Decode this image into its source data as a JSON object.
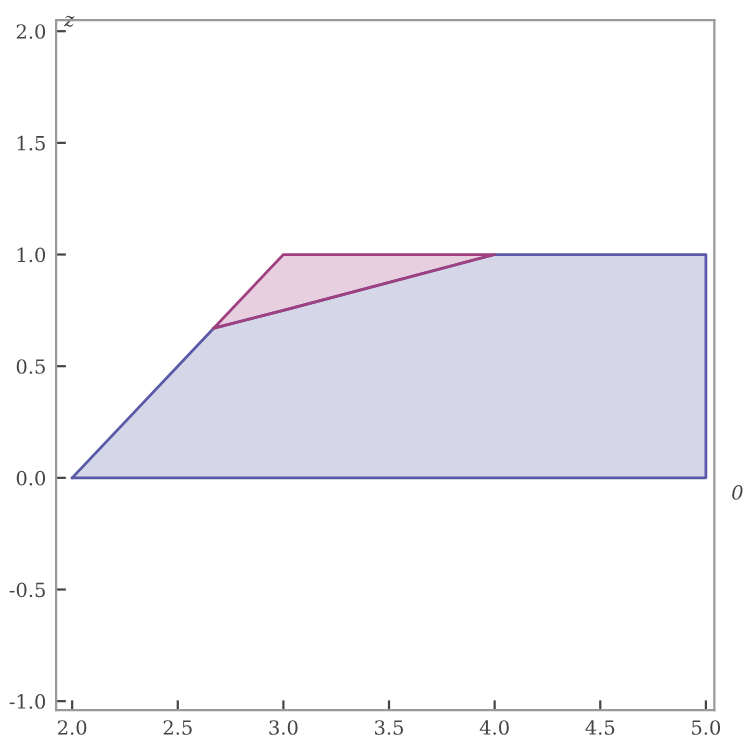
{
  "chart_data": {
    "type": "area",
    "xlabel": "0",
    "ylabel": "z",
    "series": [
      {
        "color": "#5a5aa8",
        "values": [
          0.0,
          0.67,
          0.75,
          1.0,
          1.0
        ]
      },
      {
        "color": "#a04080",
        "values": [
          null,
          0.0,
          0.25,
          0.0,
          null
        ]
      }
    ],
    "x": [
      2.0,
      2.67,
      3.0,
      4.0,
      5.0
    ],
    "stacked": true,
    "xlim": [
      1.924,
      5.04
    ],
    "ylim": [
      -1.04,
      2.05
    ],
    "xticks": [
      {
        "value": 2,
        "label": "2.0"
      },
      {
        "value": 2.5,
        "label": "2.5"
      },
      {
        "value": 3,
        "label": "3.0"
      },
      {
        "value": 3.5,
        "label": "3.5"
      },
      {
        "value": 4,
        "label": "4.0"
      },
      {
        "value": 4.5,
        "label": "4.5"
      },
      {
        "value": 5,
        "label": "5.0"
      }
    ],
    "yticks": [
      {
        "value": -1,
        "label": "-1.0"
      },
      {
        "value": -0.5,
        "label": "-0.5"
      },
      {
        "value": 0,
        "label": "0.0"
      },
      {
        "value": 0.5,
        "label": "0.5"
      },
      {
        "value": 1,
        "label": "1.0"
      },
      {
        "value": 1.5,
        "label": "1.5"
      },
      {
        "value": 2,
        "label": "2.0"
      }
    ],
    "grid": false,
    "legend": false
  }
}
